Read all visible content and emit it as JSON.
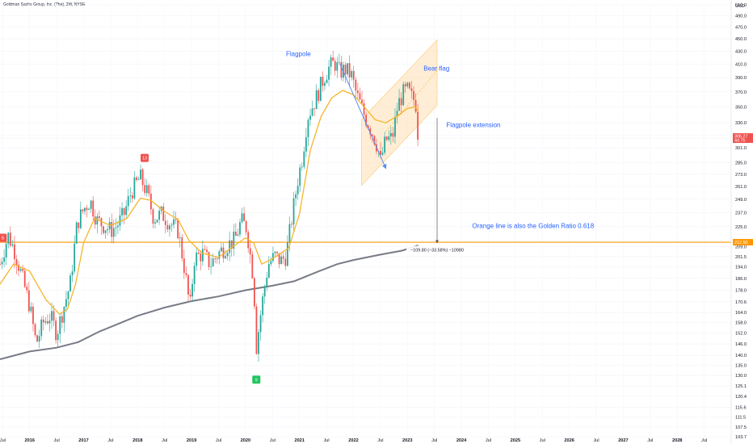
{
  "title": "Goldman Sachs Group, Inc. (The), 2W, NYSE",
  "colors": {
    "up": "#26a69a",
    "down": "#ef5350",
    "ma_fast": "#f5b52a",
    "ma_slow": "#787b86",
    "horizontal_line": "#ff9800",
    "channel_fill": "#ffe0b2",
    "annotation": "#2962ff",
    "arrow": "#5b8def"
  },
  "chart_data": {
    "type": "candlestick",
    "title": "Goldman Sachs Group, Inc. (The), 2W, NYSE",
    "y_axis": {
      "currency_label": "USD",
      "scale": "log",
      "ylim": [
        103.7,
        510
      ],
      "ticks": [
        103.7,
        107.5,
        111.5,
        115.6,
        120.4,
        125.1,
        130.0,
        135.0,
        140.0,
        146.0,
        152.0,
        158.0,
        164.0,
        170.6,
        178.0,
        186.0,
        194.0,
        201.5,
        209.0,
        225.0,
        237.0,
        249.0,
        261.0,
        273.0,
        285.0,
        301.0,
        315.0,
        330.0,
        350.0,
        370.0,
        390.0,
        410.0,
        430.0,
        450.0,
        470.0,
        490.0,
        510.0
      ]
    },
    "x_axis": {
      "xlim": [
        2015.45,
        2029.0
      ],
      "ticks": [
        {
          "t": 2015.5,
          "label": "Jul",
          "year": false
        },
        {
          "t": 2016.0,
          "label": "2016",
          "year": true
        },
        {
          "t": 2016.5,
          "label": "Jul",
          "year": false
        },
        {
          "t": 2017.0,
          "label": "2017",
          "year": true
        },
        {
          "t": 2017.5,
          "label": "Jul",
          "year": false
        },
        {
          "t": 2018.0,
          "label": "2018",
          "year": true
        },
        {
          "t": 2018.5,
          "label": "Jul",
          "year": false
        },
        {
          "t": 2019.0,
          "label": "2019",
          "year": true
        },
        {
          "t": 2019.5,
          "label": "Jul",
          "year": false
        },
        {
          "t": 2020.0,
          "label": "2020",
          "year": true
        },
        {
          "t": 2020.5,
          "label": "Jul",
          "year": false
        },
        {
          "t": 2021.0,
          "label": "2021",
          "year": true
        },
        {
          "t": 2021.5,
          "label": "Jul",
          "year": false
        },
        {
          "t": 2022.0,
          "label": "2022",
          "year": true
        },
        {
          "t": 2022.5,
          "label": "Jul",
          "year": false
        },
        {
          "t": 2023.0,
          "label": "2023",
          "year": true
        },
        {
          "t": 2023.5,
          "label": "Jul",
          "year": false
        },
        {
          "t": 2024.0,
          "label": "2024",
          "year": true
        },
        {
          "t": 2024.5,
          "label": "Jul",
          "year": false
        },
        {
          "t": 2025.0,
          "label": "2025",
          "year": true
        },
        {
          "t": 2025.5,
          "label": "Jul",
          "year": false
        },
        {
          "t": 2026.0,
          "label": "2026",
          "year": true
        },
        {
          "t": 2026.5,
          "label": "Jul",
          "year": false
        },
        {
          "t": 2027.0,
          "label": "2027",
          "year": true
        },
        {
          "t": 2027.5,
          "label": "Jul",
          "year": false
        },
        {
          "t": 2028.0,
          "label": "2028",
          "year": true
        },
        {
          "t": 2028.5,
          "label": "Jul",
          "year": false
        }
      ]
    },
    "price_path": [
      [
        2015.45,
        196
      ],
      [
        2015.6,
        218
      ],
      [
        2015.72,
        206
      ],
      [
        2015.85,
        188
      ],
      [
        2016.0,
        168
      ],
      [
        2016.12,
        146
      ],
      [
        2016.25,
        158
      ],
      [
        2016.38,
        162
      ],
      [
        2016.5,
        152
      ],
      [
        2016.62,
        166
      ],
      [
        2016.75,
        182
      ],
      [
        2016.88,
        228
      ],
      [
        2017.0,
        240
      ],
      [
        2017.12,
        248
      ],
      [
        2017.25,
        230
      ],
      [
        2017.38,
        226
      ],
      [
        2017.5,
        222
      ],
      [
        2017.62,
        226
      ],
      [
        2017.75,
        236
      ],
      [
        2017.88,
        256
      ],
      [
        2018.05,
        270
      ],
      [
        2018.18,
        254
      ],
      [
        2018.3,
        232
      ],
      [
        2018.45,
        236
      ],
      [
        2018.6,
        228
      ],
      [
        2018.75,
        222
      ],
      [
        2018.88,
        190
      ],
      [
        2018.97,
        166
      ],
      [
        2019.05,
        200
      ],
      [
        2019.2,
        204
      ],
      [
        2019.35,
        196
      ],
      [
        2019.5,
        204
      ],
      [
        2019.65,
        210
      ],
      [
        2019.8,
        214
      ],
      [
        2019.92,
        230
      ],
      [
        2020.02,
        224
      ],
      [
        2020.15,
        185
      ],
      [
        2020.2,
        144
      ],
      [
        2020.3,
        168
      ],
      [
        2020.42,
        196
      ],
      [
        2020.55,
        202
      ],
      [
        2020.65,
        198
      ],
      [
        2020.75,
        202
      ],
      [
        2020.87,
        236
      ],
      [
        2020.97,
        268
      ],
      [
        2021.05,
        290
      ],
      [
        2021.15,
        338
      ],
      [
        2021.3,
        360
      ],
      [
        2021.45,
        390
      ],
      [
        2021.55,
        405
      ],
      [
        2021.65,
        412
      ],
      [
        2021.75,
        398
      ],
      [
        2021.85,
        402
      ],
      [
        2021.97,
        392
      ],
      [
        2022.05,
        368
      ],
      [
        2022.2,
        340
      ],
      [
        2022.35,
        318
      ],
      [
        2022.45,
        302
      ],
      [
        2022.5,
        286
      ],
      [
        2022.6,
        310
      ],
      [
        2022.72,
        312
      ],
      [
        2022.82,
        352
      ],
      [
        2022.92,
        368
      ],
      [
        2023.0,
        372
      ],
      [
        2023.08,
        362
      ],
      [
        2023.15,
        358
      ],
      [
        2023.2,
        312
      ]
    ],
    "ma_fast": [
      [
        2015.45,
        182
      ],
      [
        2015.7,
        196
      ],
      [
        2016.0,
        191
      ],
      [
        2016.3,
        172
      ],
      [
        2016.55,
        163
      ],
      [
        2016.7,
        166
      ],
      [
        2016.85,
        182
      ],
      [
        2017.0,
        212
      ],
      [
        2017.2,
        232
      ],
      [
        2017.5,
        226
      ],
      [
        2017.8,
        232
      ],
      [
        2018.05,
        250
      ],
      [
        2018.25,
        248
      ],
      [
        2018.5,
        238
      ],
      [
        2018.75,
        231
      ],
      [
        2018.95,
        214
      ],
      [
        2019.2,
        204
      ],
      [
        2019.5,
        201
      ],
      [
        2019.8,
        210
      ],
      [
        2020.0,
        216
      ],
      [
        2020.15,
        212
      ],
      [
        2020.3,
        196
      ],
      [
        2020.5,
        200
      ],
      [
        2020.8,
        208
      ],
      [
        2021.0,
        236
      ],
      [
        2021.2,
        298
      ],
      [
        2021.4,
        338
      ],
      [
        2021.6,
        362
      ],
      [
        2021.8,
        372
      ],
      [
        2022.0,
        366
      ],
      [
        2022.2,
        350
      ],
      [
        2022.4,
        334
      ],
      [
        2022.6,
        330
      ],
      [
        2022.8,
        338
      ],
      [
        2023.0,
        348
      ],
      [
        2023.15,
        350
      ],
      [
        2023.2,
        344
      ]
    ],
    "ma_slow": [
      [
        2015.45,
        138
      ],
      [
        2016.0,
        142
      ],
      [
        2016.5,
        144
      ],
      [
        2016.9,
        147
      ],
      [
        2017.3,
        153
      ],
      [
        2017.7,
        158
      ],
      [
        2018.0,
        162
      ],
      [
        2018.5,
        167
      ],
      [
        2019.0,
        171
      ],
      [
        2019.5,
        174
      ],
      [
        2020.0,
        178
      ],
      [
        2020.5,
        181
      ],
      [
        2020.9,
        184
      ],
      [
        2021.3,
        190
      ],
      [
        2021.7,
        196
      ],
      [
        2022.0,
        199
      ],
      [
        2022.5,
        203
      ],
      [
        2022.9,
        206
      ],
      [
        2023.2,
        210
      ]
    ],
    "horizontal_level": 212.5,
    "channel": {
      "upper": [
        [
          2022.15,
          334
        ],
        [
          2023.55,
          448
        ]
      ],
      "lower": [
        [
          2022.15,
          262
        ],
        [
          2023.55,
          352
        ]
      ]
    },
    "channel_midline": [
      [
        2022.6,
        320
      ],
      [
        2023.6,
        405
      ]
    ],
    "flagpole_arrow": {
      "from": [
        2021.75,
        410
      ],
      "to": [
        2022.6,
        279
      ]
    },
    "extension_arrow": {
      "t": 2023.55,
      "from": 336,
      "to": 212
    },
    "markers": [
      {
        "t": 2015.5,
        "price": 216.0,
        "label": "S",
        "kind": "sell"
      },
      {
        "t": 2018.13,
        "price": 290.0,
        "label": "13",
        "kind": "sell"
      },
      {
        "t": 2020.2,
        "price": 128.0,
        "label": "9",
        "kind": "buy"
      }
    ],
    "annotations": [
      {
        "text": "Flagpole",
        "t": 2020.75,
        "price": 422
      },
      {
        "text": "Bear flag",
        "t": 2023.3,
        "price": 400
      },
      {
        "text": "Flagpole extension",
        "t": 2023.72,
        "price": 325
      },
      {
        "text": "Orange line is also the Golden Ratio 0.618",
        "t": 2024.2,
        "price": 224
      }
    ],
    "measure_label": {
      "text": "−109.80 (−33.58%) −10980",
      "t": 2023.55,
      "price": 206.5
    },
    "price_tags": {
      "last": {
        "value": "306.27",
        "sub": "4d 7h"
      },
      "level": {
        "value": "212.50"
      }
    }
  }
}
